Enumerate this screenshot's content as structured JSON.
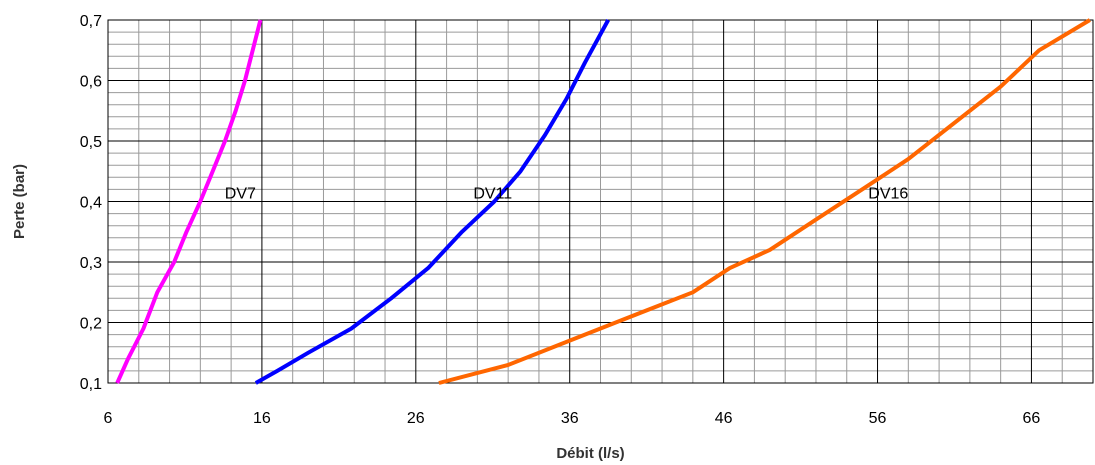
{
  "chart_data": {
    "type": "line",
    "xlabel": "Débit (l/s)",
    "ylabel": "Perte (bar)",
    "xlim": [
      6,
      70
    ],
    "ylim": [
      0.1,
      0.7
    ],
    "x_ticks": [
      "6",
      "16",
      "26",
      "36",
      "46",
      "56",
      "66"
    ],
    "y_ticks": [
      "0,1",
      "0,2",
      "0,3",
      "0,4",
      "0,5",
      "0,6",
      "0,7"
    ],
    "grid": true,
    "legend": "none",
    "series": [
      {
        "name": "DV7",
        "color": "#ff00ff",
        "label_at": [
          14.6,
          0.415
        ],
        "points": [
          [
            6.6,
            0.1
          ],
          [
            7.3,
            0.14
          ],
          [
            8.3,
            0.19
          ],
          [
            9.2,
            0.25
          ],
          [
            10.3,
            0.3
          ],
          [
            11.1,
            0.35
          ],
          [
            12.0,
            0.4
          ],
          [
            12.8,
            0.45
          ],
          [
            13.6,
            0.5
          ],
          [
            14.3,
            0.55
          ],
          [
            14.9,
            0.6
          ],
          [
            15.4,
            0.65
          ],
          [
            15.9,
            0.7
          ]
        ]
      },
      {
        "name": "DV11",
        "color": "#0000ff",
        "label_at": [
          31.0,
          0.415
        ],
        "points": [
          [
            15.6,
            0.1
          ],
          [
            17.0,
            0.12
          ],
          [
            19.0,
            0.15
          ],
          [
            21.8,
            0.19
          ],
          [
            24.4,
            0.24
          ],
          [
            26.8,
            0.29
          ],
          [
            29.0,
            0.35
          ],
          [
            31.1,
            0.4
          ],
          [
            32.8,
            0.45
          ],
          [
            34.4,
            0.51
          ],
          [
            35.8,
            0.57
          ],
          [
            37.0,
            0.63
          ],
          [
            38.5,
            0.7
          ]
        ]
      },
      {
        "name": "DV16",
        "color": "#ff6600",
        "label_at": [
          56.7,
          0.415
        ],
        "points": [
          [
            27.5,
            0.1
          ],
          [
            32.0,
            0.13
          ],
          [
            36.0,
            0.17
          ],
          [
            40.0,
            0.21
          ],
          [
            44.0,
            0.25
          ],
          [
            46.4,
            0.29
          ],
          [
            49.0,
            0.32
          ],
          [
            52.0,
            0.37
          ],
          [
            55.0,
            0.42
          ],
          [
            58.0,
            0.47
          ],
          [
            61.0,
            0.53
          ],
          [
            64.0,
            0.59
          ],
          [
            66.5,
            0.65
          ],
          [
            69.8,
            0.7
          ]
        ]
      }
    ]
  }
}
